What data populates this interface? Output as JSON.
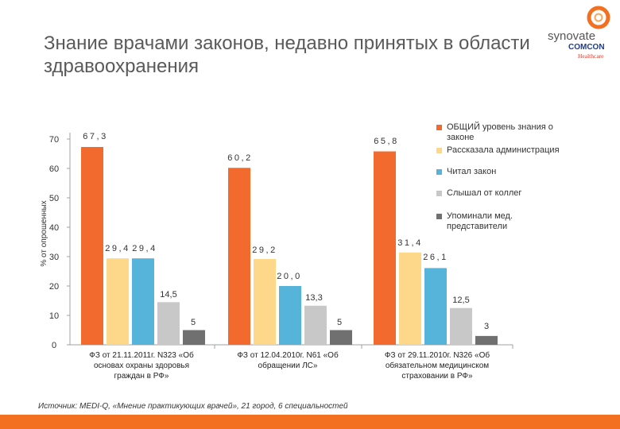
{
  "slide": {
    "title": "Знание врачами законов, недавно принятых в области здравоохранения",
    "source": "Источник: MEDI-Q, «Мнение практикующих врачей», 21 город, 6 специальностей"
  },
  "logo": {
    "brand": "synovate",
    "sub": "COMCON",
    "tag": "Healthcare"
  },
  "colors": {
    "orange": "#f37021",
    "series": [
      "#f26a2e",
      "#fdd78a",
      "#56b3d9",
      "#c8c8c8",
      "#707070"
    ]
  },
  "chart_data": {
    "type": "bar",
    "ylabel": "% от опрошенных",
    "ylim": [
      0,
      70
    ],
    "yticks": [
      0,
      10,
      20,
      30,
      40,
      50,
      60,
      70
    ],
    "categories": [
      "ФЗ от 21.11.2011г. N323 «Об основах охраны здоровья граждан в РФ»",
      "ФЗ от 12.04.2010г. N61 «Об обращении ЛС»",
      "ФЗ от 29.11.2010г. N326 «Об обязательном медицинском страховании в РФ»"
    ],
    "series": [
      {
        "name": "ОБЩИЙ уровень знания о законе",
        "values": [
          67.3,
          60.2,
          65.8
        ],
        "labels": [
          "67,3",
          "60,2",
          "65,8"
        ]
      },
      {
        "name": "Рассказала администрация",
        "values": [
          29.4,
          29.2,
          31.4
        ],
        "labels": [
          "29,4",
          "29,2",
          "31,4"
        ]
      },
      {
        "name": "Читал закон",
        "values": [
          29.4,
          20.0,
          26.1
        ],
        "labels": [
          "29,4",
          "20,0",
          "26,1"
        ]
      },
      {
        "name": "Слышал от коллег",
        "values": [
          14.5,
          13.3,
          12.5
        ],
        "labels": [
          "14,5",
          "13,3",
          "12,5"
        ]
      },
      {
        "name": "Упоминали мед. представители",
        "values": [
          5,
          5,
          3
        ],
        "labels": [
          "5",
          "5",
          "3"
        ]
      }
    ]
  }
}
